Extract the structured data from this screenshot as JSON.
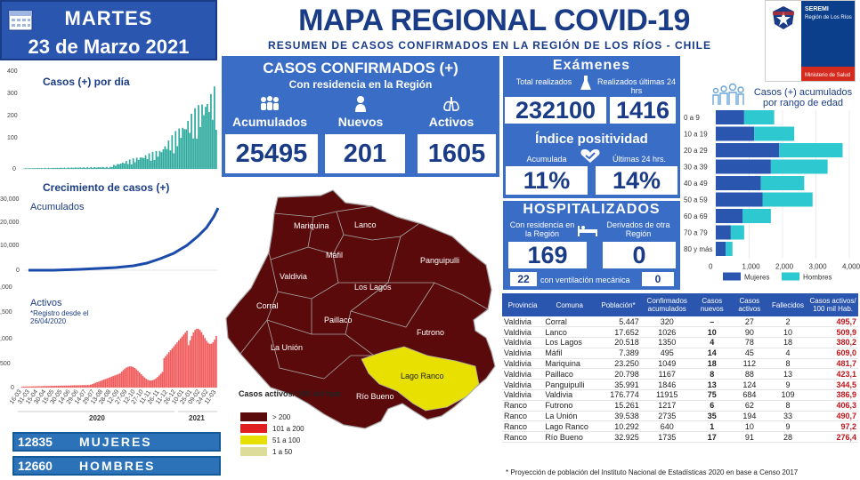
{
  "header": {
    "day": "MARTES",
    "date": "23 de Marzo 2021",
    "title": "MAPA REGIONAL COVID-19",
    "subtitle": "RESUMEN DE CASOS CONFIRMADOS EN LA REGIÓN DE LOS RÍOS - CHILE"
  },
  "seremi": {
    "name": "SEREMI",
    "region": "Región de Los Ríos",
    "ministry": "Ministerio de Salud"
  },
  "confirmados": {
    "title": "CASOS CONFIRMADOS (+)",
    "subtitle": "Con residencia en la Región",
    "labels": {
      "acumulados": "Acumulados",
      "nuevos": "Nuevos",
      "activos": "Activos"
    },
    "values": {
      "acumulados": "25495",
      "nuevos": "201",
      "activos": "1605"
    }
  },
  "examenes": {
    "title": "Exámenes",
    "total_label": "Total realizados",
    "ultimas_label": "Realizados últimas 24 hrs",
    "total": "232100",
    "ultimas": "1416"
  },
  "positividad": {
    "title": "Índice positividad",
    "acumulada_label": "Acumulada",
    "ultimas_label": "Últimas 24 hrs.",
    "acumulada": "11%",
    "ultimas": "14%"
  },
  "hospitalizados": {
    "title": "HOSPITALIZADOS",
    "residencia_label": "Con residencia en la Región",
    "derivados_label": "Derivados de otra Región",
    "residencia": "169",
    "derivados": "0",
    "ventilacion_label": "con ventilación mecánica",
    "ventilacion": "22",
    "ventilacion_derivados": "0"
  },
  "genders": {
    "mujeres_count": "12835",
    "mujeres": "MUJERES",
    "hombres_count": "12660",
    "hombres": "HOMBRES"
  },
  "charts_left": {
    "casos_title": "Casos (+) por día",
    "crecimiento_title": "Crecimiento de casos (+)",
    "acumulados_label": "Acumulados",
    "activos_label": "Activos",
    "activos_note": "*Registro desde el 26/04/2020",
    "years": [
      "2020",
      "2021"
    ]
  },
  "chart_data": [
    {
      "type": "bar",
      "title": "Casos (+) por día",
      "ylim": [
        0,
        400
      ],
      "yticks": [
        0,
        100,
        200,
        300,
        400
      ]
    },
    {
      "type": "line",
      "title": "Crecimiento de casos (+)",
      "series": [
        {
          "name": "Acumulados"
        }
      ],
      "ylim": [
        0,
        30000
      ],
      "yticks": [
        "0",
        "10,000",
        "20,000",
        "30,000"
      ]
    },
    {
      "type": "area",
      "title": "Activos",
      "ylim": [
        0,
        2000
      ],
      "yticks": [
        "0",
        "500",
        "1,000",
        "1,500",
        "2,000"
      ],
      "x_ticks": [
        "16-03",
        "31-03",
        "15-04",
        "30-04",
        "15-05",
        "30-05",
        "14-06",
        "29-06",
        "14-07",
        "29-07",
        "13-08",
        "28-08",
        "12-09",
        "27-09",
        "12-10",
        "27-10",
        "11-11",
        "26-11",
        "11-12",
        "26-12",
        "10-01",
        "25-01",
        "09-02",
        "24-02",
        "11-03"
      ]
    },
    {
      "type": "bar",
      "title": "Casos (+) acumulados por rango de edad",
      "categories": [
        "0 a 9",
        "10 a 19",
        "20 a 29",
        "30 a 39",
        "40 a 49",
        "50 a 59",
        "60 a 69",
        "70 a 79",
        "80 y más"
      ],
      "series": [
        {
          "name": "Mujeres",
          "values": [
            850,
            1150,
            1900,
            1650,
            1350,
            1400,
            800,
            450,
            300
          ]
        },
        {
          "name": "Hombres",
          "values": [
            900,
            1200,
            1900,
            1700,
            1300,
            1500,
            850,
            400,
            200
          ]
        }
      ],
      "xlim": [
        0,
        4000
      ],
      "xticks": [
        "0",
        "1,000",
        "2,000",
        "3,000",
        "4,000"
      ]
    }
  ],
  "map": {
    "municipalities": [
      "Mariquina",
      "Lanco",
      "Máfil",
      "Panguipulli",
      "Valdivia",
      "Los Lagos",
      "Corral",
      "Paillaco",
      "Futrono",
      "La Unión",
      "Lago Ranco",
      "Río Bueno"
    ],
    "legend_title": "Casos activos/ 100 mil hab.",
    "legend": [
      {
        "label": "> 200",
        "color": "#5a0a0a"
      },
      {
        "label": "101 a 200",
        "color": "#e02020"
      },
      {
        "label": "51 a 100",
        "color": "#e8e000"
      },
      {
        "label": "1 a 50",
        "color": "#dddd99"
      }
    ]
  },
  "table": {
    "headers": [
      "Provincia",
      "Comuna",
      "Población*",
      "Confirmados acumulados",
      "Casos nuevos",
      "Casos activos",
      "Fallecidos",
      "Casos activos/ 100 mil Hab."
    ],
    "rows": [
      [
        "Valdivia",
        "Corral",
        "5.447",
        "320",
        "–",
        "27",
        "2",
        "495,7"
      ],
      [
        "Valdivia",
        "Lanco",
        "17.652",
        "1026",
        "10",
        "90",
        "10",
        "509,9"
      ],
      [
        "Valdivia",
        "Los Lagos",
        "20.518",
        "1350",
        "4",
        "78",
        "18",
        "380,2"
      ],
      [
        "Valdivia",
        "Máfil",
        "7.389",
        "495",
        "14",
        "45",
        "4",
        "609,0"
      ],
      [
        "Valdivia",
        "Mariquina",
        "23.250",
        "1049",
        "18",
        "112",
        "8",
        "481,7"
      ],
      [
        "Valdivia",
        "Paillaco",
        "20.798",
        "1167",
        "8",
        "88",
        "13",
        "423,1"
      ],
      [
        "Valdivia",
        "Panguipulli",
        "35.991",
        "1846",
        "13",
        "124",
        "9",
        "344,5"
      ],
      [
        "Valdivia",
        "Valdivia",
        "176.774",
        "11915",
        "75",
        "684",
        "109",
        "386,9"
      ],
      [
        "Ranco",
        "Futrono",
        "15.261",
        "1217",
        "6",
        "62",
        "8",
        "406,3"
      ],
      [
        "Ranco",
        "La Unión",
        "39.538",
        "2735",
        "35",
        "194",
        "33",
        "490,7"
      ],
      [
        "Ranco",
        "Lago Ranco",
        "10.292",
        "640",
        "1",
        "10",
        "9",
        "97,2"
      ],
      [
        "Ranco",
        "Río Bueno",
        "32.925",
        "1735",
        "17",
        "91",
        "28",
        "276,4"
      ]
    ],
    "footnote": "*  Proyección de población del Instituto Nacional de Estadísticas 2020 en base a Censo 2017"
  },
  "age_chart": {
    "title": "Casos (+) acumulados por rango de edad",
    "legend_mujeres": "Mujeres",
    "legend_hombres": "Hombres",
    "colors": {
      "mujeres": "#2b56b0",
      "hombres": "#2ec8d0"
    }
  }
}
